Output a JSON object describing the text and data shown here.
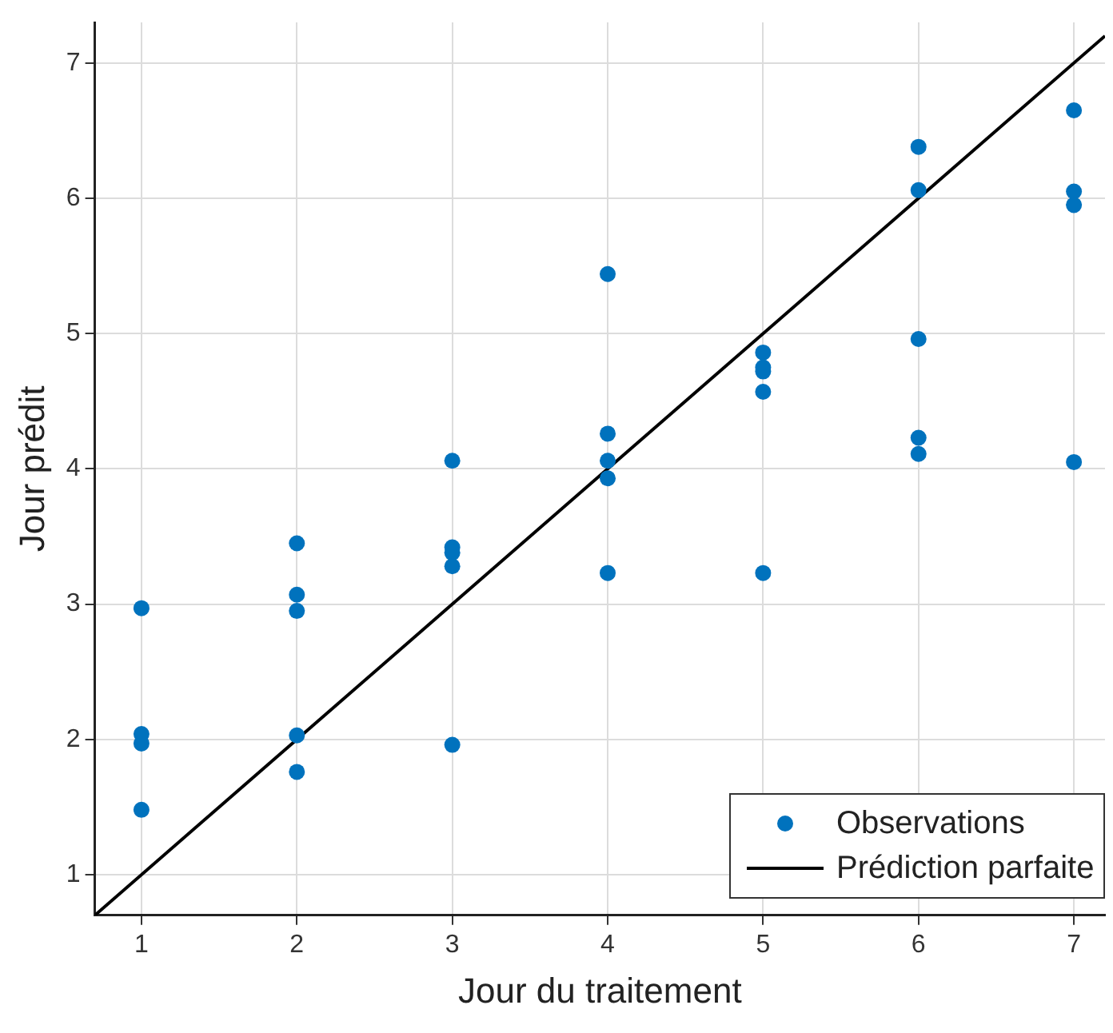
{
  "chart_data": {
    "type": "scatter",
    "xlabel": "Jour du traitement",
    "ylabel": "Jour prédit",
    "xlim": [
      0.7,
      7.2
    ],
    "ylim": [
      0.7,
      7.3
    ],
    "xticks": [
      1,
      2,
      3,
      4,
      5,
      6,
      7
    ],
    "yticks": [
      1,
      2,
      3,
      4,
      5,
      6,
      7
    ],
    "grid": true,
    "legend": "bottom right",
    "series": [
      {
        "name": "Observations",
        "marker": "circle",
        "color": "#0072bd",
        "x": [
          1,
          1,
          1,
          1,
          2,
          2,
          2,
          2,
          2,
          3,
          3,
          3,
          3,
          3,
          4,
          4,
          4,
          4,
          4,
          5,
          5,
          5,
          5,
          5,
          6,
          6,
          6,
          6,
          6,
          7,
          7,
          7,
          7
        ],
        "values": [
          2.97,
          2.04,
          1.97,
          1.48,
          3.45,
          3.07,
          2.95,
          2.03,
          1.76,
          4.06,
          3.42,
          3.38,
          3.28,
          1.96,
          5.44,
          4.26,
          4.06,
          3.93,
          3.23,
          4.86,
          4.75,
          4.72,
          4.57,
          3.23,
          6.38,
          6.06,
          4.96,
          4.23,
          4.11,
          6.65,
          6.05,
          5.95,
          4.05
        ]
      },
      {
        "name": "Prédiction parfaite",
        "type": "line",
        "color": "#000000",
        "line_style": "solid",
        "marker": "none",
        "x": [
          0.7,
          7.2
        ],
        "values": [
          0.7,
          7.2
        ]
      }
    ]
  }
}
